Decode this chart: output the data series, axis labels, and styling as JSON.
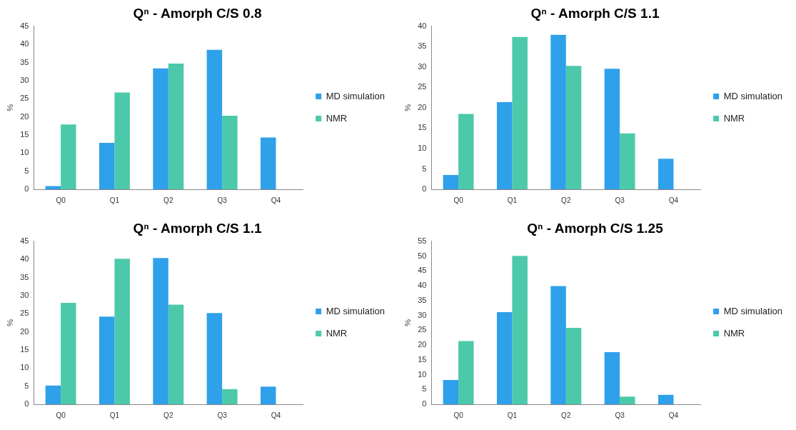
{
  "chart_data": [
    {
      "type": "bar",
      "title": "Qⁿ - Amorph C/S 0.8",
      "ylabel": "%",
      "categories": [
        "Q0",
        "Q1",
        "Q2",
        "Q3",
        "Q4"
      ],
      "ylim": [
        0,
        45
      ],
      "yticks": [
        0,
        5,
        10,
        15,
        20,
        25,
        30,
        35,
        40,
        45
      ],
      "legend": "right",
      "series": [
        {
          "name": "MD simulation",
          "color": "#2fa0ea",
          "values": [
            0.9,
            12.8,
            33.4,
            38.5,
            14.3
          ]
        },
        {
          "name": "NMR",
          "color": "#4cc9aa",
          "values": [
            17.9,
            26.7,
            34.7,
            20.3,
            null
          ]
        }
      ]
    },
    {
      "type": "bar",
      "title": "Qⁿ - Amorph C/S 1.1",
      "ylabel": "%",
      "categories": [
        "Q0",
        "Q1",
        "Q2",
        "Q3",
        "Q4"
      ],
      "ylim": [
        0,
        40
      ],
      "yticks": [
        0,
        5,
        10,
        15,
        20,
        25,
        30,
        35,
        40
      ],
      "legend": "right",
      "series": [
        {
          "name": "MD simulation",
          "color": "#2fa0ea",
          "values": [
            3.5,
            21.4,
            37.9,
            29.6,
            7.5
          ]
        },
        {
          "name": "NMR",
          "color": "#4cc9aa",
          "values": [
            18.5,
            37.4,
            30.3,
            13.7,
            null
          ]
        }
      ]
    },
    {
      "type": "bar",
      "title": "Qⁿ - Amorph C/S 1.1",
      "ylabel": "%",
      "categories": [
        "Q0",
        "Q1",
        "Q2",
        "Q3",
        "Q4"
      ],
      "ylim": [
        0,
        45
      ],
      "yticks": [
        0,
        5,
        10,
        15,
        20,
        25,
        30,
        35,
        40,
        45
      ],
      "legend": "right",
      "series": [
        {
          "name": "MD simulation",
          "color": "#2fa0ea",
          "values": [
            5.2,
            24.2,
            40.4,
            25.2,
            4.9
          ]
        },
        {
          "name": "NMR",
          "color": "#4cc9aa",
          "values": [
            28.0,
            40.2,
            27.5,
            4.2,
            null
          ]
        }
      ]
    },
    {
      "type": "bar",
      "title": "Qⁿ - Amorph C/S 1.25",
      "ylabel": "%",
      "categories": [
        "Q0",
        "Q1",
        "Q2",
        "Q3",
        "Q4"
      ],
      "ylim": [
        0,
        55
      ],
      "yticks": [
        0,
        5,
        10,
        15,
        20,
        25,
        30,
        35,
        40,
        45,
        50,
        55
      ],
      "legend": "right",
      "series": [
        {
          "name": "MD simulation",
          "color": "#2fa0ea",
          "values": [
            8.2,
            31.1,
            39.9,
            17.6,
            3.2
          ]
        },
        {
          "name": "NMR",
          "color": "#4cc9aa",
          "values": [
            21.3,
            50.1,
            25.8,
            2.6,
            null
          ]
        }
      ]
    }
  ]
}
